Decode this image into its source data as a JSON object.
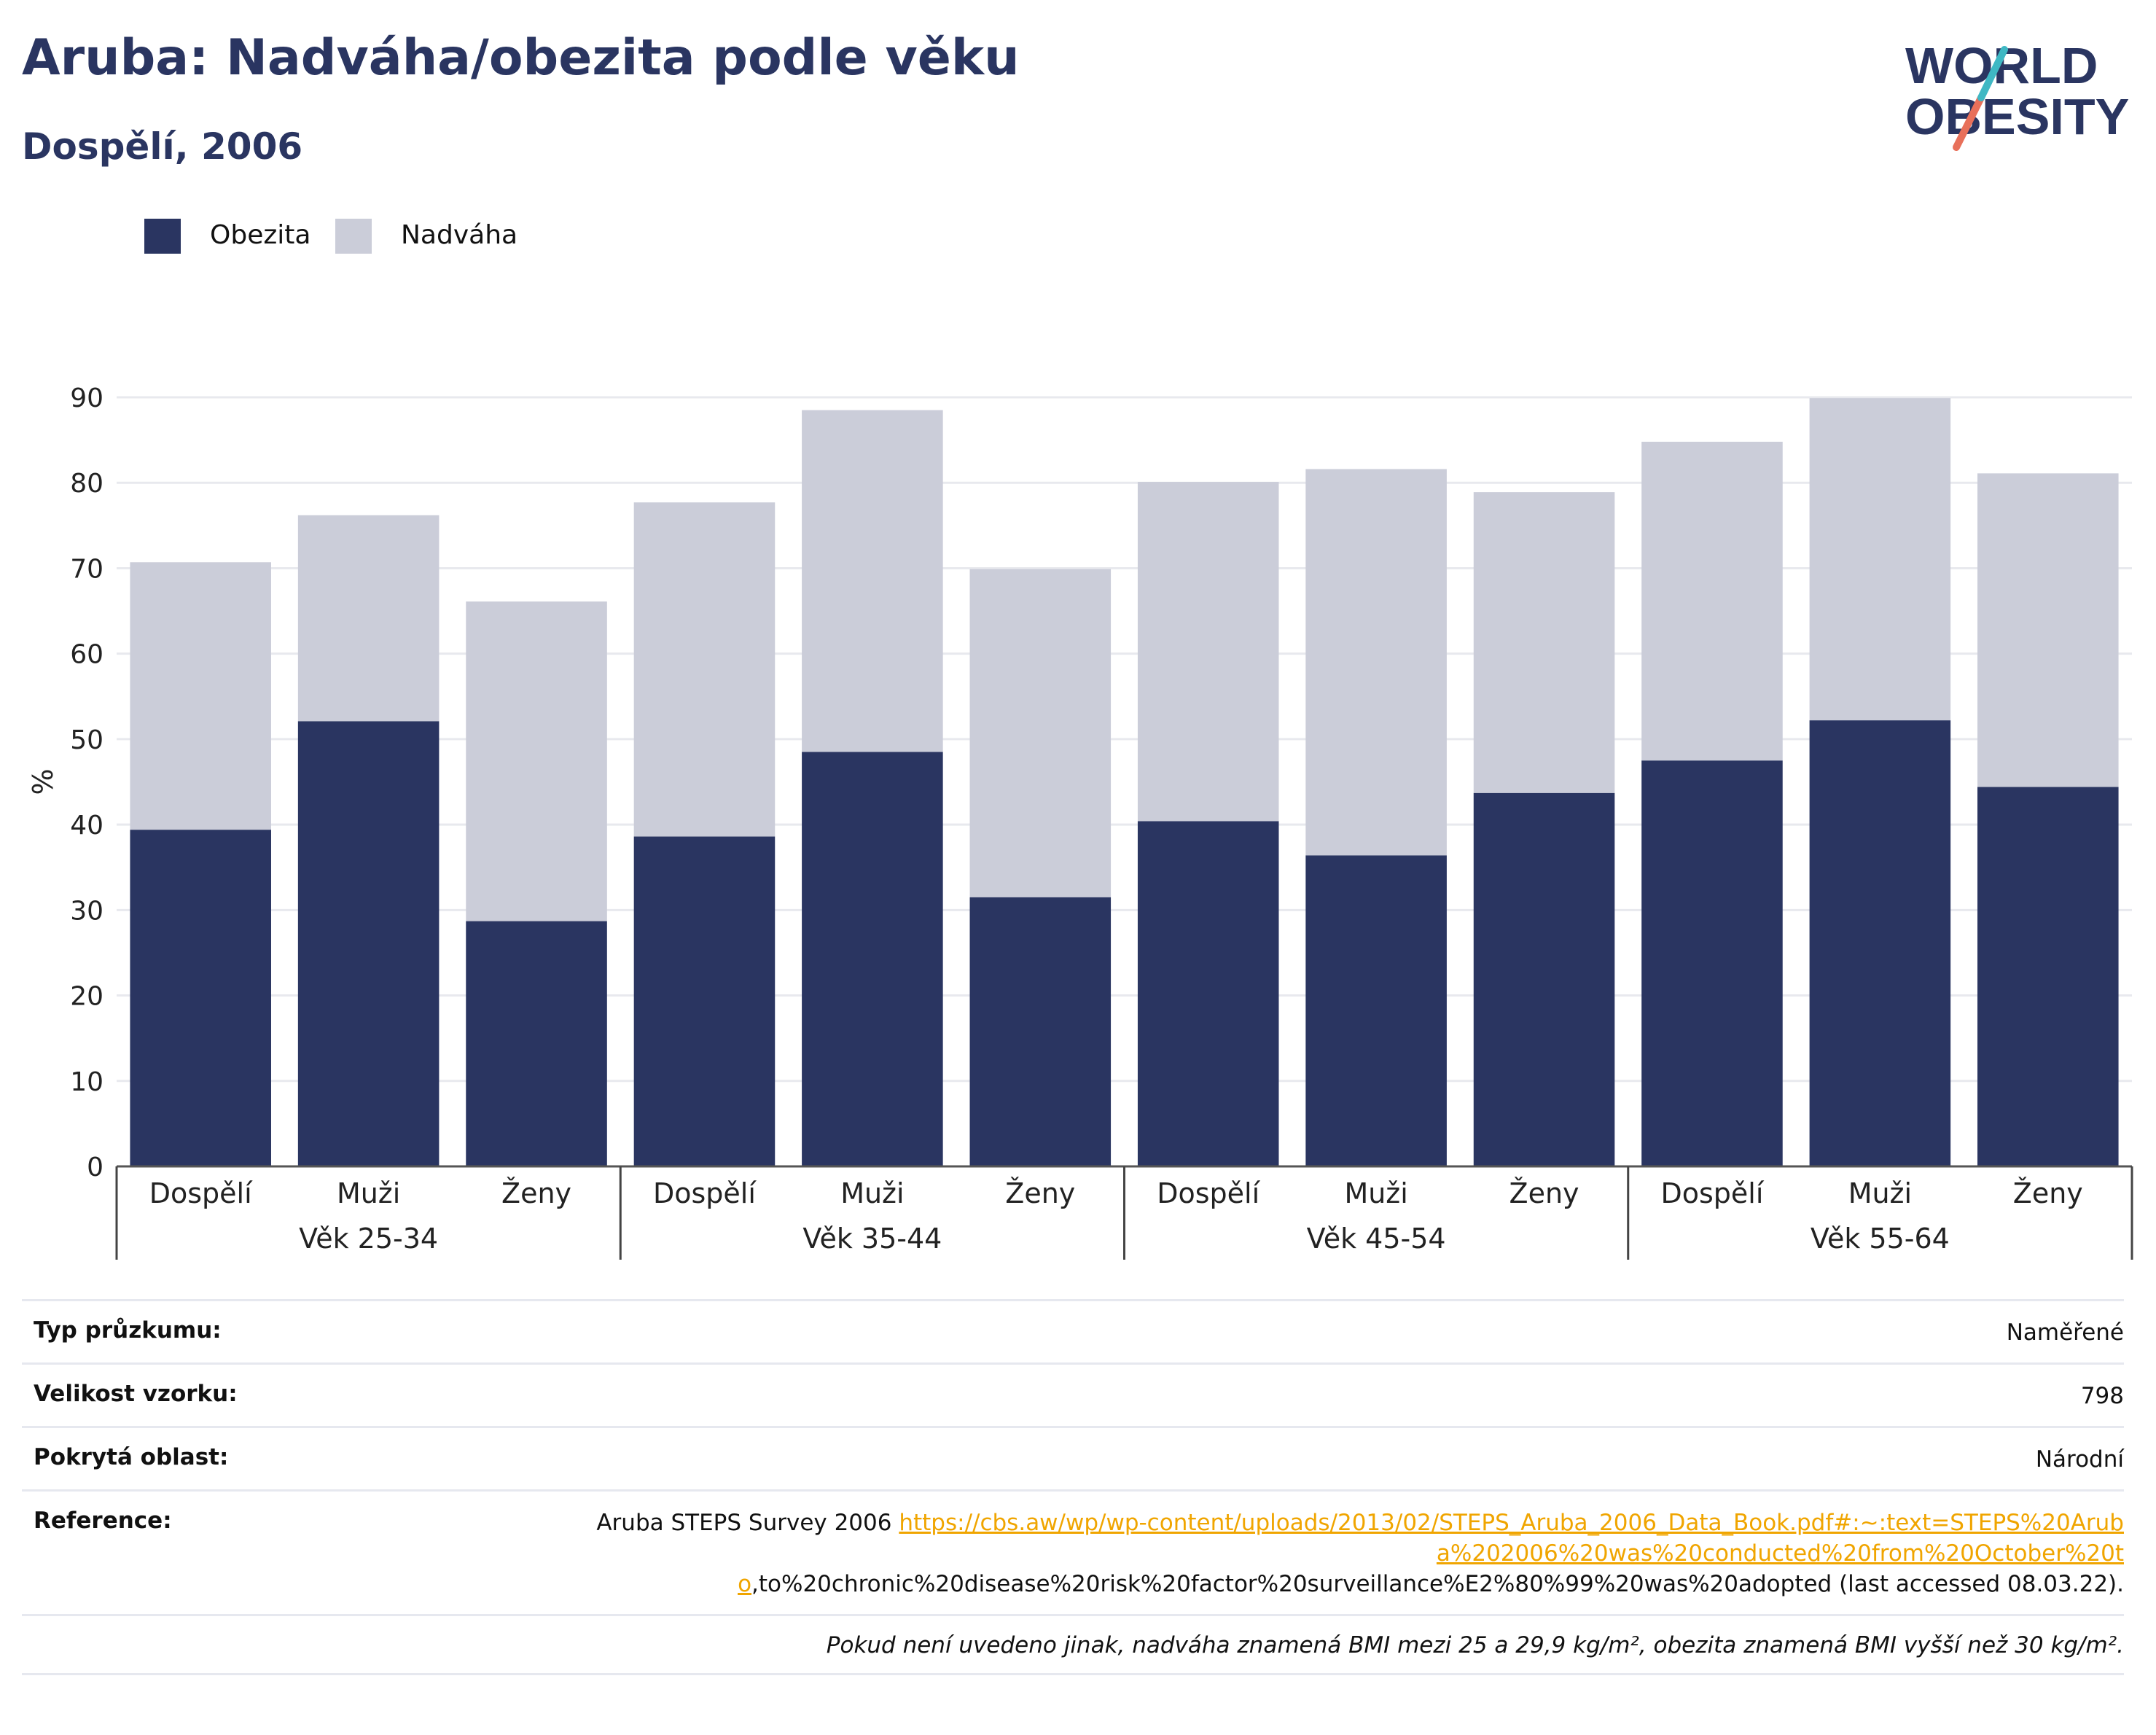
{
  "header": {
    "title": "Aruba: Nadváha/obezita podle věku",
    "subtitle": "Dospělí, 2006"
  },
  "logo": {
    "line1": "WORLD",
    "line2": "OBESITY"
  },
  "colors": {
    "obesity": "#2a3561",
    "overweight": "#cbcdd9",
    "link": "#f0a500",
    "title": "#2a3561"
  },
  "chart_data": {
    "type": "bar",
    "stacked": true,
    "ylabel": "%",
    "ylim": [
      0,
      90
    ],
    "yticks": [
      0,
      10,
      20,
      30,
      40,
      50,
      60,
      70,
      80,
      90
    ],
    "grid": true,
    "legend_position": "top-left",
    "groups": [
      "Věk 25-34",
      "Věk 35-44",
      "Věk 45-54",
      "Věk 55-64"
    ],
    "categories": [
      "Dospělí",
      "Muži",
      "Ženy",
      "Dospělí",
      "Muži",
      "Ženy",
      "Dospělí",
      "Muži",
      "Ženy",
      "Dospělí",
      "Muži",
      "Ženy"
    ],
    "series": [
      {
        "name": "Obezita",
        "values": [
          39.4,
          52.1,
          28.7,
          38.6,
          48.5,
          31.5,
          40.4,
          36.4,
          43.7,
          47.5,
          52.2,
          44.4
        ]
      },
      {
        "name": "Nadváha",
        "values": [
          31.3,
          24.1,
          37.4,
          39.1,
          40.0,
          38.4,
          39.7,
          45.2,
          35.2,
          37.3,
          37.7,
          36.7
        ]
      }
    ]
  },
  "meta": {
    "rows": [
      {
        "label": "Typ průzkumu:",
        "value": "Naměřené"
      },
      {
        "label": "Velikost vzorku:",
        "value": "798"
      },
      {
        "label": "Pokrytá oblast:",
        "value": "Národní"
      }
    ],
    "reference": {
      "label": "Reference:",
      "prefix": "Aruba STEPS Survey 2006 ",
      "link": "https://cbs.aw/wp/wp-content/uploads/2013/02/STEPS_Aruba_2006_Data_Book.pdf#:~:text=STEPS%20Aruba%202006%20was%20conducted%20from%20October%20to",
      "suffix": ",to%20chronic%20disease%20risk%20factor%20surveillance%E2%80%99%20was%20adopted (last accessed 08.03.22)."
    },
    "note": "Pokud není uvedeno jinak, nadváha znamená BMI mezi 25 a 29,9 kg/m², obezita znamená BMI vyšší než 30 kg/m²."
  }
}
